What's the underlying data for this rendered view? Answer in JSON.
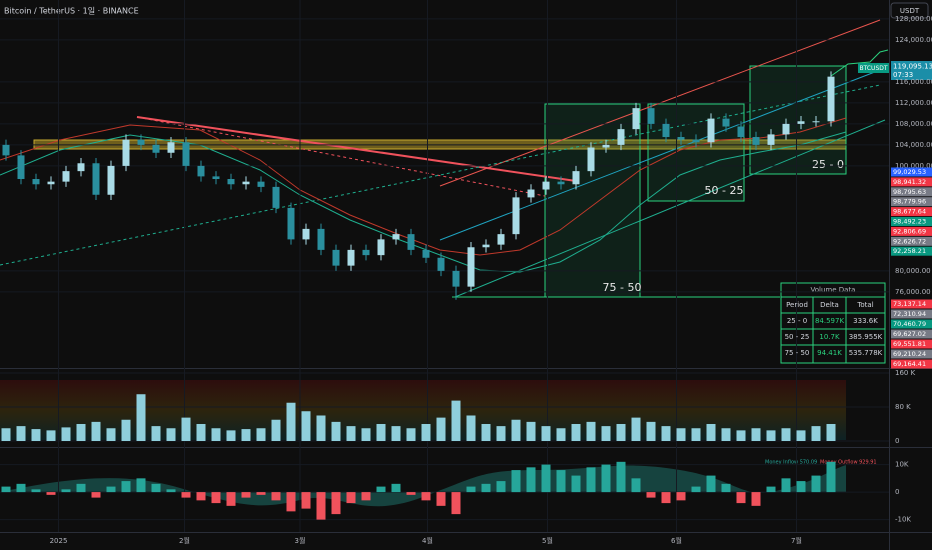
{
  "chart_data": [
    {
      "type": "candlestick",
      "title": "Bitcoin / TetherUS · 1일 · BINANCE",
      "currency": "USDT",
      "symbol": "BTCUSDT",
      "last_price": "119,095.13",
      "countdown": "07:33",
      "categories": [
        null,
        null,
        null,
        null,
        null,
        null,
        null,
        null,
        null,
        null,
        null,
        null,
        null,
        null,
        null,
        null,
        null,
        null,
        null,
        null,
        null,
        null,
        null,
        null,
        null,
        null,
        null,
        null,
        null,
        null,
        null,
        null,
        null,
        null,
        null,
        null,
        null,
        null,
        null,
        null,
        null,
        null,
        null,
        null,
        null,
        null,
        null,
        null,
        null,
        null,
        null,
        null,
        null,
        null,
        null,
        null
      ],
      "open": [
        104000,
        102000,
        97500,
        96500,
        97000,
        99000,
        100500,
        94500,
        100000,
        105000,
        104000,
        102500,
        104500,
        100000,
        98000,
        97500,
        96500,
        97000,
        96000,
        92000,
        86000,
        88000,
        84000,
        81000,
        84000,
        83000,
        86000,
        87000,
        84000,
        82500,
        80000,
        77000,
        84500,
        85000,
        87000,
        94000,
        95500,
        97000,
        96500,
        99000,
        103500,
        104000,
        107000,
        111000,
        108000,
        105500,
        105000,
        104500,
        109000,
        107500,
        105500,
        104000,
        106000,
        108000,
        108500,
        108500
      ],
      "high": [
        105000,
        103000,
        98500,
        98000,
        100000,
        101500,
        101500,
        101000,
        106000,
        106000,
        105000,
        105500,
        105500,
        101000,
        99000,
        98500,
        98000,
        98000,
        97000,
        93000,
        89000,
        89000,
        85000,
        85000,
        85000,
        87000,
        88000,
        88000,
        85000,
        83500,
        81000,
        85500,
        86000,
        88000,
        95000,
        96500,
        98000,
        98000,
        100000,
        104500,
        105000,
        108000,
        112000,
        112000,
        109000,
        106500,
        106000,
        110000,
        110000,
        108500,
        106500,
        107000,
        109000,
        109500,
        109500,
        118000
      ],
      "low": [
        101000,
        96500,
        95500,
        95500,
        96000,
        98000,
        93500,
        93500,
        99000,
        103000,
        101500,
        101500,
        99000,
        97000,
        96500,
        95500,
        95500,
        95000,
        91000,
        85000,
        85000,
        83000,
        80000,
        80000,
        82000,
        82000,
        85000,
        83000,
        81500,
        79000,
        74500,
        76000,
        83500,
        84000,
        86000,
        93000,
        94500,
        95500,
        95500,
        98000,
        102500,
        103000,
        106000,
        107000,
        104500,
        104000,
        103500,
        103500,
        106500,
        104500,
        103000,
        103000,
        105000,
        107000,
        107500,
        107500
      ],
      "close": [
        102000,
        97500,
        96500,
        97000,
        99000,
        100500,
        94500,
        100000,
        105000,
        104000,
        102500,
        104500,
        100000,
        98000,
        97500,
        96500,
        97000,
        96000,
        92000,
        86000,
        88000,
        84000,
        81000,
        84000,
        83000,
        86000,
        87000,
        84000,
        82500,
        80000,
        77000,
        84500,
        85000,
        87000,
        94000,
        95500,
        97000,
        96500,
        99000,
        103500,
        104000,
        107000,
        111000,
        108000,
        105500,
        105000,
        104500,
        109000,
        107500,
        105500,
        104000,
        106000,
        108000,
        108500,
        108500,
        117000
      ],
      "up_color": "#a9dbe6",
      "down_color": "#2a8f9e",
      "ylim": [
        61500,
        131600
      ],
      "yticks": [
        {
          "value": 128000,
          "label": "128,000.00"
        },
        {
          "value": 124000,
          "label": "124,000.00"
        },
        {
          "value": 116000,
          "label": "116,000.00"
        },
        {
          "value": 112000,
          "label": "112,000.00"
        },
        {
          "value": 108000,
          "label": "108,000.00"
        },
        {
          "value": 104000,
          "label": "104,000.00"
        },
        {
          "value": 100000,
          "label": "100,000.00"
        },
        {
          "value": 80000,
          "label": "80,000.00"
        },
        {
          "value": 76000,
          "label": "76,000.00"
        }
      ],
      "xticks": [
        {
          "value": 3.5,
          "label": "2025"
        },
        {
          "value": 11.9,
          "label": "2월"
        },
        {
          "value": 19.6,
          "label": "3월"
        },
        {
          "value": 28.1,
          "label": "4월"
        },
        {
          "value": 36.1,
          "label": "5월"
        },
        {
          "value": 44.7,
          "label": "6월"
        },
        {
          "value": 52.7,
          "label": "7월"
        }
      ],
      "annotations": [
        "75 - 50",
        "50 - 25",
        "25 - 0"
      ],
      "volume_table": {
        "title": "Volume Data",
        "columns": [
          "Period",
          "Delta",
          "Total"
        ],
        "rows": [
          [
            "25 - 0",
            "84.597K",
            "333.6K"
          ],
          [
            "50 - 25",
            "10.7K",
            "385.955K"
          ],
          [
            "75 - 50",
            "94.41K",
            "535.778K"
          ]
        ]
      },
      "price_labels": [
        {
          "label": "99,029.53",
          "color": "#2962ff"
        },
        {
          "label": "98,941.32",
          "color": "#f23645"
        },
        {
          "label": "98,795.63",
          "color": "#787b86"
        },
        {
          "label": "98,779.96",
          "color": "#787b86"
        },
        {
          "label": "98,677.64",
          "color": "#f23645"
        },
        {
          "label": "98,492.23",
          "color": "#089981"
        },
        {
          "label": "92,806.69",
          "color": "#f23645"
        },
        {
          "label": "92,626.72",
          "color": "#787b86"
        },
        {
          "label": "92,258.21",
          "color": "#089981"
        },
        {
          "label": "73,137.14",
          "color": "#f23645"
        },
        {
          "label": "72,310.94",
          "color": "#787b86"
        },
        {
          "label": "70,460.79",
          "color": "#089981"
        },
        {
          "label": "69,627.02",
          "color": "#787b86"
        },
        {
          "label": "69,551.81",
          "color": "#f23645"
        },
        {
          "label": "69,210.24",
          "color": "#787b86"
        },
        {
          "label": "69,164.41",
          "color": "#f23645"
        }
      ]
    },
    {
      "type": "bar",
      "color": "#8fcfdc",
      "values": [
        30000,
        35000,
        28000,
        25000,
        32000,
        40000,
        45000,
        30000,
        50000,
        110000,
        35000,
        30000,
        55000,
        40000,
        30000,
        25000,
        28000,
        30000,
        50000,
        90000,
        70000,
        60000,
        45000,
        35000,
        30000,
        40000,
        35000,
        30000,
        40000,
        55000,
        95000,
        60000,
        40000,
        35000,
        50000,
        45000,
        35000,
        30000,
        40000,
        45000,
        35000,
        40000,
        55000,
        45000,
        35000,
        30000,
        30000,
        40000,
        30000,
        25000,
        30000,
        25000,
        30000,
        25000,
        35000,
        40000
      ],
      "ylim": [
        0,
        167000
      ],
      "yticks": [
        {
          "value": 160000,
          "label": "160 K"
        },
        {
          "value": 80000,
          "label": "80 K"
        },
        0
      ]
    },
    {
      "type": "bar",
      "positive_color": "#26a69a",
      "negative_color": "#f0525c",
      "values": [
        2000,
        3000,
        1000,
        -1000,
        1000,
        3000,
        -2000,
        2000,
        4000,
        5000,
        3000,
        1000,
        -2000,
        -3000,
        -4000,
        -5000,
        -2000,
        -1000,
        -3000,
        -7000,
        -6000,
        -10000,
        -8000,
        -4000,
        -3000,
        2000,
        3000,
        -1000,
        -3000,
        -5000,
        -8000,
        2000,
        3000,
        4000,
        8000,
        9000,
        10000,
        8000,
        6000,
        9000,
        10000,
        11000,
        5000,
        -2000,
        -4000,
        -3000,
        2000,
        6000,
        3000,
        -4000,
        -5000,
        2000,
        5000,
        4000,
        6000,
        11000
      ],
      "ylim": [
        -14500,
        15300
      ],
      "yticks": [
        {
          "value": 10000,
          "label": "10K"
        },
        0,
        {
          "value": -10000,
          "label": "-10K"
        }
      ],
      "annotations": [
        "Money Inflow 570.09",
        "Money Outflow 929.91"
      ]
    }
  ]
}
